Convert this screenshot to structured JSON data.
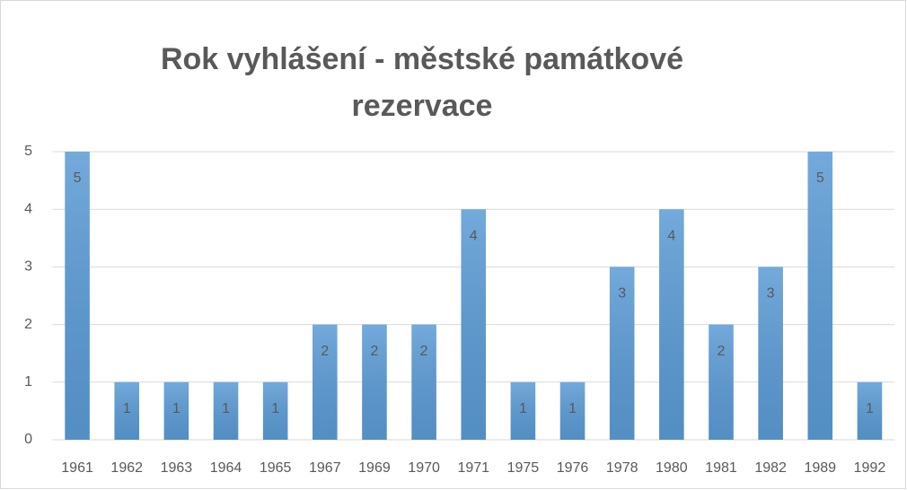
{
  "chart_data": {
    "type": "bar",
    "title": "Rok vyhlášení - městské památkové rezervace",
    "categories": [
      "1961",
      "1962",
      "1963",
      "1964",
      "1965",
      "1967",
      "1969",
      "1970",
      "1971",
      "1975",
      "1976",
      "1978",
      "1980",
      "1981",
      "1982",
      "1989",
      "1992"
    ],
    "values": [
      5,
      1,
      1,
      1,
      1,
      2,
      2,
      2,
      4,
      1,
      1,
      3,
      4,
      2,
      3,
      5,
      1
    ],
    "color": "#5b9bd5",
    "ylim": [
      0,
      5
    ],
    "yticks": [
      0,
      1,
      2,
      3,
      4,
      5
    ],
    "grid": true,
    "data_labels": true
  }
}
